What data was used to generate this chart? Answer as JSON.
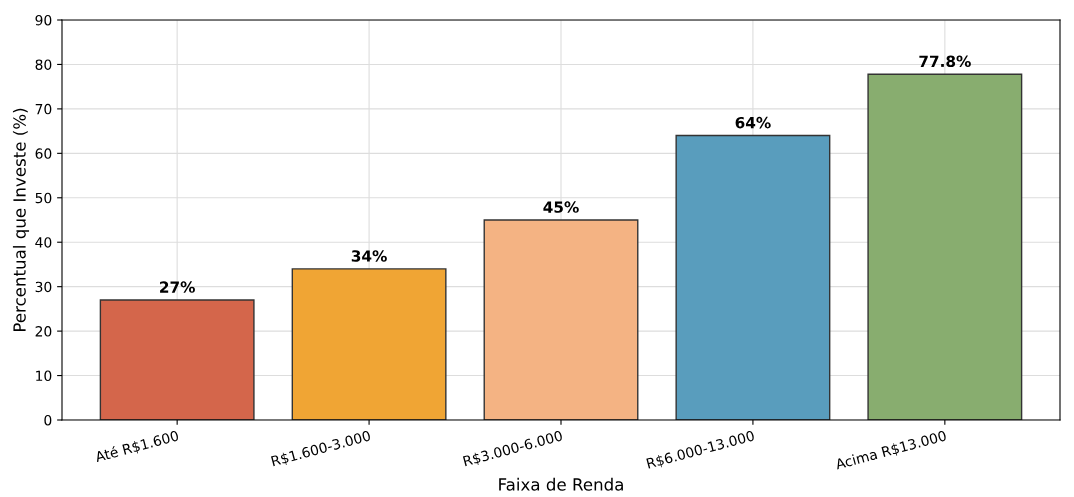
{
  "chart_data": {
    "type": "bar",
    "xlabel": "Faixa de Renda",
    "ylabel": "Percentual que Investe (%)",
    "categories": [
      "Até R$1.600",
      "R$1.600-3.000",
      "R$3.000-6.000",
      "R$6.000-13.000",
      "Acima R$13.000"
    ],
    "values": [
      27,
      34,
      45,
      64,
      77.8
    ],
    "colors": [
      "#d4664b",
      "#f0a534",
      "#f4b383",
      "#599dbd",
      "#88ad6f"
    ],
    "value_labels": [
      "27%",
      "34%",
      "45%",
      "64%",
      "77.8%"
    ],
    "ylim": [
      0,
      90
    ],
    "yticks": [
      0,
      10,
      20,
      30,
      40,
      50,
      60,
      70,
      80,
      90
    ],
    "grid": true
  }
}
